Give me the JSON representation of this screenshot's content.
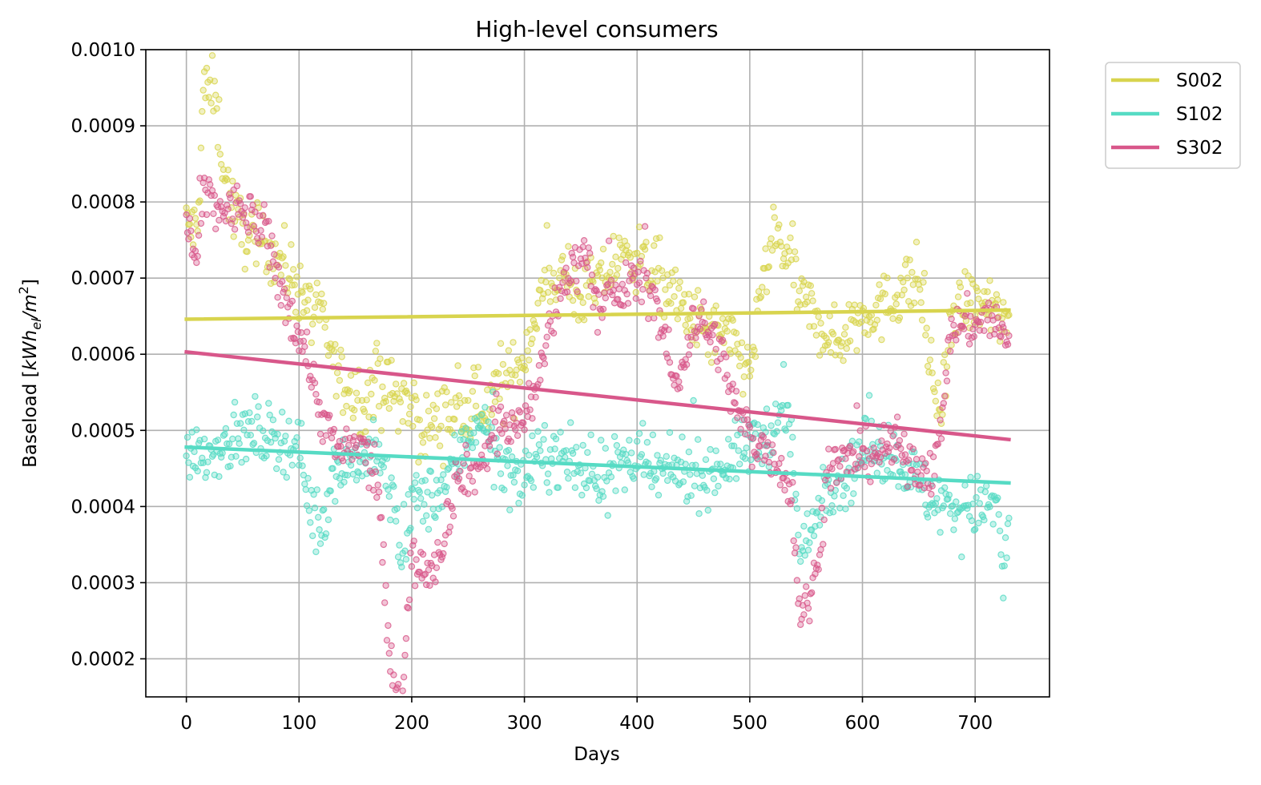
{
  "chart_data": {
    "type": "scatter",
    "title": "High-level consumers",
    "xlabel": "Days",
    "ylabel_main": "Baseload [",
    "ylabel_math": "kWh",
    "ylabel_sub": "el",
    "ylabel_slash": "/m",
    "ylabel_sup": "2",
    "ylabel_close": "]",
    "xlim": [
      -36,
      766
    ],
    "ylim": [
      0.00015,
      0.001
    ],
    "xticks": [
      0,
      100,
      200,
      300,
      400,
      500,
      600,
      700
    ],
    "yticks": [
      0.0002,
      0.0003,
      0.0004,
      0.0005,
      0.0006,
      0.0007,
      0.0008,
      0.0009,
      0.001
    ],
    "ytick_labels": [
      "0.0002",
      "0.0003",
      "0.0004",
      "0.0005",
      "0.0006",
      "0.0007",
      "0.0008",
      "0.0009",
      "0.0010"
    ],
    "grid": true,
    "legend_position": "outside-top-right",
    "series": [
      {
        "name": "S002",
        "color": "#d8d44e",
        "trend": [
          [
            0,
            0.000646
          ],
          [
            730,
            0.000658
          ]
        ],
        "anchors": [
          [
            0,
            0.00077
          ],
          [
            10,
            0.00076
          ],
          [
            15,
            0.00095
          ],
          [
            25,
            0.00094
          ],
          [
            35,
            0.00083
          ],
          [
            45,
            0.00077
          ],
          [
            60,
            0.00075
          ],
          [
            75,
            0.00074
          ],
          [
            90,
            0.00071
          ],
          [
            100,
            0.00069
          ],
          [
            110,
            0.00066
          ],
          [
            120,
            0.00064
          ],
          [
            135,
            0.00057
          ],
          [
            150,
            0.00054
          ],
          [
            170,
            0.00056
          ],
          [
            190,
            0.00054
          ],
          [
            210,
            0.0005
          ],
          [
            230,
            0.00052
          ],
          [
            250,
            0.00052
          ],
          [
            270,
            0.00054
          ],
          [
            290,
            0.00057
          ],
          [
            300,
            0.0006
          ],
          [
            315,
            0.00068
          ],
          [
            330,
            0.00071
          ],
          [
            345,
            0.00068
          ],
          [
            360,
            0.00068
          ],
          [
            380,
            0.00072
          ],
          [
            400,
            0.00073
          ],
          [
            420,
            0.0007
          ],
          [
            440,
            0.00066
          ],
          [
            460,
            0.00063
          ],
          [
            480,
            0.00062
          ],
          [
            500,
            0.00058
          ],
          [
            515,
            0.00072
          ],
          [
            525,
            0.00075
          ],
          [
            535,
            0.00073
          ],
          [
            545,
            0.00067
          ],
          [
            560,
            0.00065
          ],
          [
            575,
            0.00061
          ],
          [
            590,
            0.00064
          ],
          [
            605,
            0.00066
          ],
          [
            620,
            0.00066
          ],
          [
            635,
            0.00069
          ],
          [
            650,
            0.0007
          ],
          [
            660,
            0.00058
          ],
          [
            670,
            0.00052
          ],
          [
            680,
            0.00065
          ],
          [
            695,
            0.00067
          ],
          [
            710,
            0.00066
          ],
          [
            730,
            0.00064
          ]
        ]
      },
      {
        "name": "S102",
        "color": "#56dbc4",
        "trend": [
          [
            0,
            0.000478
          ],
          [
            730,
            0.000431
          ]
        ],
        "anchors": [
          [
            0,
            0.00048
          ],
          [
            20,
            0.00047
          ],
          [
            40,
            0.00049
          ],
          [
            60,
            0.0005
          ],
          [
            80,
            0.00049
          ],
          [
            100,
            0.00048
          ],
          [
            110,
            0.0004
          ],
          [
            118,
            0.00036
          ],
          [
            130,
            0.00045
          ],
          [
            150,
            0.00046
          ],
          [
            170,
            0.00047
          ],
          [
            185,
            0.0004
          ],
          [
            192,
            0.00031
          ],
          [
            200,
            0.00041
          ],
          [
            220,
            0.00041
          ],
          [
            240,
            0.00046
          ],
          [
            260,
            0.00052
          ],
          [
            280,
            0.00045
          ],
          [
            300,
            0.00044
          ],
          [
            320,
            0.00047
          ],
          [
            340,
            0.00046
          ],
          [
            360,
            0.00044
          ],
          [
            380,
            0.00045
          ],
          [
            400,
            0.00046
          ],
          [
            420,
            0.00044
          ],
          [
            440,
            0.00045
          ],
          [
            460,
            0.00044
          ],
          [
            480,
            0.00046
          ],
          [
            500,
            0.00048
          ],
          [
            520,
            0.0005
          ],
          [
            535,
            0.00052
          ],
          [
            545,
            0.00033
          ],
          [
            555,
            0.00037
          ],
          [
            565,
            0.00043
          ],
          [
            585,
            0.00044
          ],
          [
            605,
            0.00048
          ],
          [
            625,
            0.00047
          ],
          [
            640,
            0.00045
          ],
          [
            660,
            0.00041
          ],
          [
            680,
            0.0004
          ],
          [
            700,
            0.0004
          ],
          [
            720,
            0.0004
          ],
          [
            725,
            0.0003
          ],
          [
            730,
            0.00038
          ]
        ]
      },
      {
        "name": "S302",
        "color": "#d8578a",
        "trend": [
          [
            0,
            0.000603
          ],
          [
            730,
            0.000488
          ]
        ],
        "anchors": [
          [
            0,
            0.00077
          ],
          [
            10,
            0.00072
          ],
          [
            15,
            0.00081
          ],
          [
            30,
            0.00079
          ],
          [
            50,
            0.00079
          ],
          [
            70,
            0.00076
          ],
          [
            85,
            0.00068
          ],
          [
            100,
            0.00063
          ],
          [
            110,
            0.00058
          ],
          [
            120,
            0.00052
          ],
          [
            135,
            0.00047
          ],
          [
            155,
            0.00048
          ],
          [
            170,
            0.00043
          ],
          [
            180,
            0.0002
          ],
          [
            190,
            0.00014
          ],
          [
            200,
            0.00033
          ],
          [
            215,
            0.00032
          ],
          [
            225,
            0.00034
          ],
          [
            240,
            0.00044
          ],
          [
            260,
            0.00045
          ],
          [
            275,
            0.00051
          ],
          [
            290,
            0.0005
          ],
          [
            310,
            0.00055
          ],
          [
            325,
            0.00065
          ],
          [
            340,
            0.00071
          ],
          [
            355,
            0.00074
          ],
          [
            365,
            0.00066
          ],
          [
            385,
            0.00068
          ],
          [
            400,
            0.0007
          ],
          [
            415,
            0.00068
          ],
          [
            435,
            0.00055
          ],
          [
            450,
            0.00065
          ],
          [
            470,
            0.00062
          ],
          [
            490,
            0.00052
          ],
          [
            505,
            0.00048
          ],
          [
            520,
            0.00047
          ],
          [
            535,
            0.00043
          ],
          [
            545,
            0.00026
          ],
          [
            555,
            0.00028
          ],
          [
            570,
            0.00045
          ],
          [
            590,
            0.00046
          ],
          [
            610,
            0.00047
          ],
          [
            630,
            0.00048
          ],
          [
            650,
            0.00045
          ],
          [
            665,
            0.00045
          ],
          [
            680,
            0.00064
          ],
          [
            700,
            0.00064
          ],
          [
            715,
            0.00065
          ],
          [
            730,
            0.00061
          ]
        ]
      }
    ]
  }
}
